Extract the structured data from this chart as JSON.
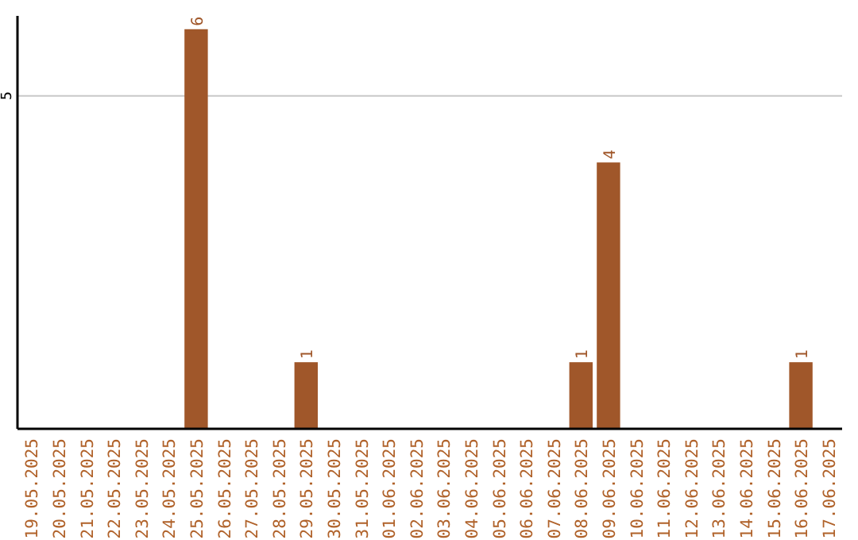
{
  "chart_data": {
    "type": "bar",
    "categories": [
      "19.05.2025",
      "20.05.2025",
      "21.05.2025",
      "22.05.2025",
      "23.05.2025",
      "24.05.2025",
      "25.05.2025",
      "26.05.2025",
      "27.05.2025",
      "28.05.2025",
      "29.05.2025",
      "30.05.2025",
      "31.05.2025",
      "01.06.2025",
      "02.06.2025",
      "03.06.2025",
      "04.06.2025",
      "05.06.2025",
      "06.06.2025",
      "07.06.2025",
      "08.06.2025",
      "09.06.2025",
      "10.06.2025",
      "11.06.2025",
      "12.06.2025",
      "13.06.2025",
      "14.06.2025",
      "15.06.2025",
      "16.06.2025",
      "17.06.2025"
    ],
    "values": [
      0,
      0,
      0,
      0,
      0,
      0,
      6,
      0,
      0,
      0,
      1,
      0,
      0,
      0,
      0,
      0,
      0,
      0,
      0,
      0,
      1,
      4,
      0,
      0,
      0,
      0,
      0,
      0,
      1,
      0
    ],
    "value_labels": [
      null,
      null,
      null,
      null,
      null,
      null,
      "6",
      null,
      null,
      null,
      "1",
      null,
      null,
      null,
      null,
      null,
      null,
      null,
      null,
      null,
      "1",
      "4",
      null,
      null,
      null,
      null,
      null,
      null,
      "1",
      null
    ],
    "color": "#a0572a",
    "ylim": [
      0,
      6.2
    ],
    "yticks": [
      5
    ],
    "grid": "y"
  }
}
